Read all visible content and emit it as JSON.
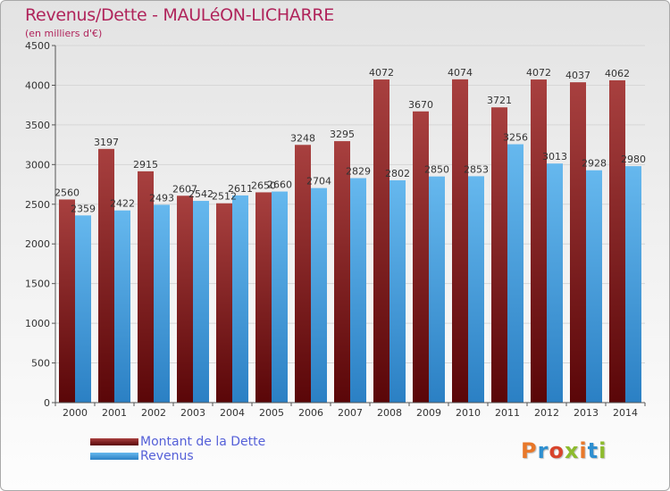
{
  "header": {
    "title": "Revenus/Dette - MAULéON-LICHARRE",
    "subtitle": "(en milliers d'€)"
  },
  "logo": {
    "text": "Proxiti",
    "colors": [
      "#e8782a",
      "#2e8fd0",
      "#d8442c",
      "#8dbb2e",
      "#e8782a",
      "#2e8fd0",
      "#8dbb2e"
    ]
  },
  "colors": {
    "debt": "#7b1a1f",
    "debt_light": "#a83a3f",
    "revenue": "#3b99dd",
    "revenue_light": "#6fc0f3",
    "title": "#b0245b",
    "legend_text": "#5560d8"
  },
  "chart_data": {
    "type": "bar",
    "title": "Revenus/Dette - MAULéON-LICHARRE",
    "subtitle": "(en milliers d'€)",
    "xlabel": "",
    "ylabel": "",
    "ylim": [
      0,
      4500
    ],
    "yticks": [
      0,
      500,
      1000,
      1500,
      2000,
      2500,
      3000,
      3500,
      4000,
      4500
    ],
    "grid": true,
    "legend_position": "bottom-left",
    "categories": [
      "2000",
      "2001",
      "2002",
      "2003",
      "2004",
      "2005",
      "2006",
      "2007",
      "2008",
      "2009",
      "2010",
      "2011",
      "2012",
      "2013",
      "2014"
    ],
    "series": [
      {
        "name": "Montant de la Dette",
        "values": [
          2560,
          3197,
          2915,
          2607,
          2512,
          2650,
          3248,
          3295,
          4072,
          3670,
          4074,
          3721,
          4072,
          4037,
          4062
        ]
      },
      {
        "name": "Revenus",
        "values": [
          2359,
          2422,
          2493,
          2542,
          2611,
          2660,
          2704,
          2829,
          2802,
          2850,
          2853,
          3256,
          3013,
          2928,
          2980
        ]
      }
    ]
  }
}
